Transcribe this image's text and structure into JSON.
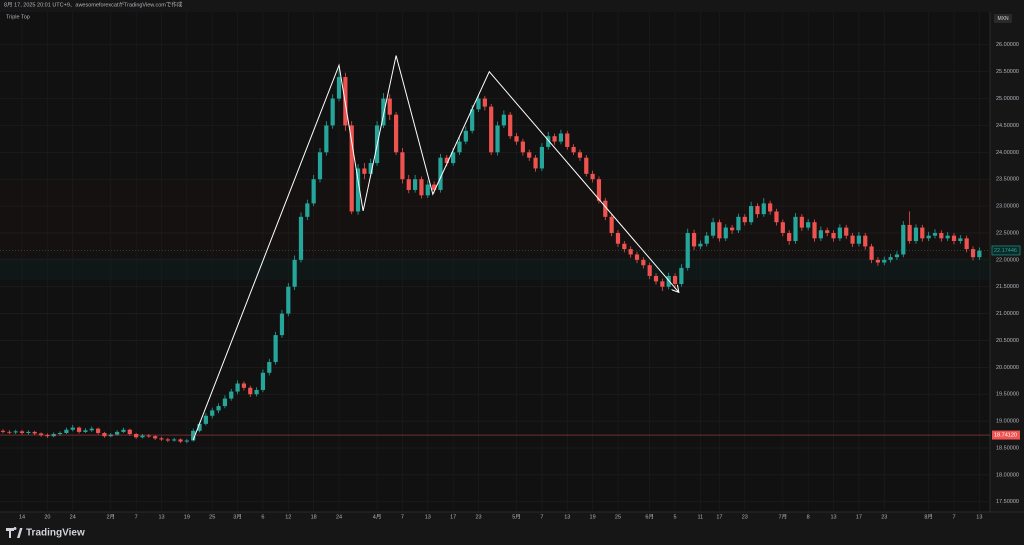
{
  "header": {
    "caption": "8月 17, 2025 20:01 UTC+9、awesomeforexcatがTradingView.comで作成"
  },
  "chart_data": {
    "type": "candlestick",
    "title": "Triple Top",
    "currency": "MXN",
    "up_color": "#26a69a",
    "down_color": "#ef5350",
    "grid": true,
    "categories": [
      null,
      null,
      null,
      "14",
      null,
      null,
      null,
      "20",
      null,
      null,
      null,
      "24",
      null,
      null,
      null,
      null,
      null,
      "2月",
      null,
      null,
      null,
      "7",
      null,
      null,
      null,
      "13",
      null,
      null,
      null,
      "19",
      null,
      null,
      null,
      "25",
      null,
      null,
      null,
      "3月",
      null,
      null,
      null,
      "6",
      null,
      null,
      null,
      "12",
      null,
      null,
      null,
      "18",
      null,
      null,
      null,
      "24",
      null,
      null,
      null,
      null,
      null,
      "4月",
      null,
      null,
      null,
      "7",
      null,
      null,
      null,
      "13",
      null,
      null,
      null,
      "17",
      null,
      null,
      null,
      "23",
      null,
      null,
      null,
      null,
      null,
      "5月",
      null,
      null,
      null,
      "7",
      null,
      null,
      null,
      "13",
      null,
      null,
      null,
      "19",
      null,
      null,
      null,
      "25",
      null,
      null,
      null,
      null,
      "6月",
      null,
      null,
      null,
      "5",
      null,
      null,
      null,
      "11",
      null,
      null,
      "17",
      null,
      null,
      null,
      "23",
      null,
      null,
      null,
      null,
      null,
      "7月",
      null,
      null,
      null,
      "8",
      null,
      null,
      null,
      "13",
      null,
      null,
      null,
      "17",
      null,
      null,
      null,
      "23",
      null,
      null,
      null,
      null,
      null,
      null,
      "8月",
      null,
      null,
      null,
      "7",
      null,
      null,
      null,
      "13"
    ],
    "ohlc": [
      [
        18.82,
        18.85,
        18.77,
        18.8
      ],
      [
        18.8,
        18.83,
        18.76,
        18.79
      ],
      [
        18.79,
        18.84,
        18.76,
        18.81
      ],
      [
        18.81,
        18.84,
        18.75,
        18.78
      ],
      [
        18.78,
        18.83,
        18.75,
        18.8
      ],
      [
        18.8,
        18.82,
        18.74,
        18.77
      ],
      [
        18.77,
        18.79,
        18.71,
        18.74
      ],
      [
        18.74,
        18.77,
        18.69,
        18.72
      ],
      [
        18.72,
        18.79,
        18.7,
        18.76
      ],
      [
        18.76,
        18.81,
        18.73,
        18.78
      ],
      [
        18.78,
        18.88,
        18.76,
        18.84
      ],
      [
        18.84,
        18.93,
        18.81,
        18.88
      ],
      [
        18.88,
        18.9,
        18.77,
        18.8
      ],
      [
        18.8,
        18.87,
        18.78,
        18.83
      ],
      [
        18.83,
        18.9,
        18.8,
        18.86
      ],
      [
        18.86,
        18.88,
        18.75,
        18.78
      ],
      [
        18.78,
        18.8,
        18.69,
        18.72
      ],
      [
        18.72,
        18.78,
        18.7,
        18.75
      ],
      [
        18.75,
        18.83,
        18.73,
        18.8
      ],
      [
        18.8,
        18.88,
        18.78,
        18.84
      ],
      [
        18.84,
        18.86,
        18.73,
        18.76
      ],
      [
        18.76,
        18.78,
        18.67,
        18.7
      ],
      [
        18.7,
        18.76,
        18.68,
        18.73
      ],
      [
        18.73,
        18.76,
        18.69,
        18.72
      ],
      [
        18.72,
        18.74,
        18.65,
        18.68
      ],
      [
        18.68,
        18.71,
        18.63,
        18.66
      ],
      [
        18.66,
        18.69,
        18.61,
        18.64
      ],
      [
        18.64,
        18.69,
        18.62,
        18.66
      ],
      [
        18.66,
        18.68,
        18.59,
        18.62
      ],
      [
        18.62,
        18.67,
        18.59,
        18.64
      ],
      [
        18.64,
        18.86,
        18.62,
        18.82
      ],
      [
        18.82,
        18.99,
        18.79,
        18.95
      ],
      [
        18.95,
        19.15,
        18.92,
        19.1
      ],
      [
        19.1,
        19.25,
        19.05,
        19.2
      ],
      [
        19.2,
        19.33,
        19.15,
        19.28
      ],
      [
        19.28,
        19.48,
        19.24,
        19.42
      ],
      [
        19.42,
        19.6,
        19.38,
        19.55
      ],
      [
        19.55,
        19.76,
        19.5,
        19.7
      ],
      [
        19.7,
        19.74,
        19.57,
        19.62
      ],
      [
        19.62,
        19.66,
        19.45,
        19.5
      ],
      [
        19.5,
        19.63,
        19.46,
        19.58
      ],
      [
        19.58,
        19.96,
        19.54,
        19.9
      ],
      [
        19.9,
        20.16,
        19.85,
        20.1
      ],
      [
        20.1,
        20.66,
        20.05,
        20.6
      ],
      [
        20.6,
        21.07,
        20.55,
        21.0
      ],
      [
        21.0,
        21.57,
        20.95,
        21.5
      ],
      [
        21.5,
        22.08,
        21.44,
        22.0
      ],
      [
        22.0,
        22.88,
        21.95,
        22.8
      ],
      [
        22.8,
        23.12,
        22.74,
        23.05
      ],
      [
        23.05,
        23.58,
        23.0,
        23.5
      ],
      [
        23.5,
        24.08,
        23.44,
        24.0
      ],
      [
        24.0,
        24.58,
        23.94,
        24.5
      ],
      [
        24.5,
        25.08,
        24.44,
        25.0
      ],
      [
        25.0,
        25.55,
        24.95,
        25.4
      ],
      [
        25.4,
        25.48,
        24.4,
        24.5
      ],
      [
        24.5,
        24.58,
        22.85,
        22.9
      ],
      [
        22.9,
        23.78,
        22.84,
        23.7
      ],
      [
        23.7,
        23.8,
        23.5,
        23.6
      ],
      [
        23.6,
        23.88,
        23.55,
        23.8
      ],
      [
        23.8,
        24.58,
        23.75,
        24.5
      ],
      [
        24.5,
        25.1,
        24.45,
        25.0
      ],
      [
        25.0,
        25.08,
        24.6,
        24.7
      ],
      [
        24.7,
        24.75,
        23.95,
        24.0
      ],
      [
        24.0,
        24.08,
        23.42,
        23.5
      ],
      [
        23.5,
        23.58,
        23.24,
        23.3
      ],
      [
        23.3,
        23.58,
        23.25,
        23.5
      ],
      [
        23.5,
        23.55,
        23.14,
        23.2
      ],
      [
        23.2,
        23.48,
        23.15,
        23.4
      ],
      [
        23.4,
        23.46,
        23.24,
        23.3
      ],
      [
        23.3,
        23.97,
        23.25,
        23.9
      ],
      [
        23.9,
        23.95,
        23.74,
        23.8
      ],
      [
        23.8,
        24.08,
        23.75,
        24.0
      ],
      [
        24.0,
        24.28,
        23.95,
        24.2
      ],
      [
        24.2,
        24.48,
        24.15,
        24.4
      ],
      [
        24.4,
        24.88,
        24.35,
        24.8
      ],
      [
        24.8,
        25.08,
        24.75,
        25.0
      ],
      [
        25.0,
        25.05,
        24.78,
        24.85
      ],
      [
        24.85,
        24.9,
        23.95,
        24.0
      ],
      [
        24.0,
        24.57,
        23.94,
        24.5
      ],
      [
        24.5,
        24.78,
        24.45,
        24.7
      ],
      [
        24.7,
        24.75,
        24.25,
        24.3
      ],
      [
        24.3,
        24.36,
        24.14,
        24.2
      ],
      [
        24.2,
        24.25,
        23.94,
        24.0
      ],
      [
        24.0,
        24.05,
        23.84,
        23.9
      ],
      [
        23.9,
        23.95,
        23.64,
        23.7
      ],
      [
        23.7,
        24.17,
        23.65,
        24.1
      ],
      [
        24.1,
        24.38,
        24.05,
        24.3
      ],
      [
        24.3,
        24.35,
        24.14,
        24.2
      ],
      [
        24.2,
        24.42,
        24.15,
        24.35
      ],
      [
        24.35,
        24.4,
        24.05,
        24.1
      ],
      [
        24.1,
        24.15,
        23.95,
        24.0
      ],
      [
        24.0,
        24.05,
        23.84,
        23.9
      ],
      [
        23.9,
        23.95,
        23.55,
        23.6
      ],
      [
        23.6,
        23.66,
        23.44,
        23.5
      ],
      [
        23.5,
        23.55,
        23.05,
        23.1
      ],
      [
        23.1,
        23.15,
        22.74,
        22.8
      ],
      [
        22.8,
        22.85,
        22.44,
        22.5
      ],
      [
        22.5,
        22.55,
        22.24,
        22.3
      ],
      [
        22.3,
        22.35,
        22.14,
        22.2
      ],
      [
        22.2,
        22.25,
        22.04,
        22.1
      ],
      [
        22.1,
        22.15,
        21.94,
        22.0
      ],
      [
        22.0,
        22.05,
        21.84,
        21.9
      ],
      [
        21.9,
        21.95,
        21.64,
        21.7
      ],
      [
        21.7,
        21.75,
        21.54,
        21.6
      ],
      [
        21.6,
        21.65,
        21.42,
        21.5
      ],
      [
        21.5,
        21.76,
        21.45,
        21.7
      ],
      [
        21.7,
        21.75,
        21.48,
        21.55
      ],
      [
        21.55,
        21.92,
        21.5,
        21.85
      ],
      [
        21.85,
        22.58,
        21.8,
        22.5
      ],
      [
        22.5,
        22.56,
        22.18,
        22.25
      ],
      [
        22.25,
        22.36,
        22.2,
        22.3
      ],
      [
        22.3,
        22.52,
        22.25,
        22.45
      ],
      [
        22.45,
        22.78,
        22.4,
        22.7
      ],
      [
        22.7,
        22.75,
        22.34,
        22.4
      ],
      [
        22.4,
        22.66,
        22.35,
        22.6
      ],
      [
        22.6,
        22.65,
        22.48,
        22.55
      ],
      [
        22.55,
        22.86,
        22.5,
        22.8
      ],
      [
        22.8,
        22.85,
        22.64,
        22.7
      ],
      [
        22.7,
        23.08,
        22.65,
        23.0
      ],
      [
        23.0,
        23.05,
        22.78,
        22.85
      ],
      [
        22.85,
        23.15,
        22.8,
        23.05
      ],
      [
        23.05,
        23.1,
        22.84,
        22.9
      ],
      [
        22.9,
        22.95,
        22.64,
        22.7
      ],
      [
        22.7,
        22.75,
        22.44,
        22.5
      ],
      [
        22.5,
        22.55,
        22.28,
        22.35
      ],
      [
        22.35,
        22.87,
        22.3,
        22.8
      ],
      [
        22.8,
        22.85,
        22.54,
        22.6
      ],
      [
        22.6,
        22.76,
        22.55,
        22.7
      ],
      [
        22.7,
        22.75,
        22.34,
        22.4
      ],
      [
        22.4,
        22.62,
        22.35,
        22.55
      ],
      [
        22.55,
        22.6,
        22.44,
        22.5
      ],
      [
        22.5,
        22.55,
        22.34,
        22.4
      ],
      [
        22.4,
        22.66,
        22.35,
        22.6
      ],
      [
        22.6,
        22.65,
        22.39,
        22.45
      ],
      [
        22.45,
        22.5,
        22.24,
        22.3
      ],
      [
        22.3,
        22.52,
        22.25,
        22.45
      ],
      [
        22.45,
        22.5,
        22.19,
        22.25
      ],
      [
        22.25,
        22.3,
        21.94,
        22.0
      ],
      [
        22.0,
        22.05,
        21.89,
        21.95
      ],
      [
        21.95,
        22.06,
        21.9,
        22.0
      ],
      [
        22.0,
        22.11,
        21.95,
        22.05
      ],
      [
        22.05,
        22.16,
        22.0,
        22.1
      ],
      [
        22.1,
        22.72,
        22.05,
        22.65
      ],
      [
        22.65,
        22.9,
        22.3,
        22.35
      ],
      [
        22.35,
        22.66,
        22.3,
        22.6
      ],
      [
        22.6,
        22.65,
        22.34,
        22.4
      ],
      [
        22.4,
        22.52,
        22.35,
        22.45
      ],
      [
        22.45,
        22.57,
        22.4,
        22.5
      ],
      [
        22.5,
        22.55,
        22.34,
        22.4
      ],
      [
        22.4,
        22.52,
        22.35,
        22.45
      ],
      [
        22.45,
        22.5,
        22.29,
        22.35
      ],
      [
        22.35,
        22.46,
        22.3,
        22.4
      ],
      [
        22.4,
        22.45,
        22.14,
        22.2
      ],
      [
        22.2,
        22.25,
        21.99,
        22.05
      ],
      [
        22.05,
        22.23,
        22.0,
        22.17
      ]
    ],
    "ylim": [
      17.31,
      26.61
    ],
    "yticks": [
      {
        "value": 17.5,
        "label": "17.50000"
      },
      {
        "value": 18,
        "label": "18.00000"
      },
      {
        "value": 18.5,
        "label": "18.50000"
      },
      {
        "value": 19,
        "label": "19.00000"
      },
      {
        "value": 19.5,
        "label": "19.50000"
      },
      {
        "value": 20,
        "label": "20.00000"
      },
      {
        "value": 20.5,
        "label": "20.50000"
      },
      {
        "value": 21,
        "label": "21.00000"
      },
      {
        "value": 21.5,
        "label": "21.50000"
      },
      {
        "value": 22,
        "label": "22.00000"
      },
      {
        "value": 22.5,
        "label": "22.50000"
      },
      {
        "value": 23,
        "label": "23.00000"
      },
      {
        "value": 23.5,
        "label": "23.50000"
      },
      {
        "value": 24,
        "label": "24.00000"
      },
      {
        "value": 24.5,
        "label": "24.50000"
      },
      {
        "value": 25,
        "label": "25.00000"
      },
      {
        "value": 25.5,
        "label": "25.50000"
      },
      {
        "value": 26,
        "label": "26.00000"
      }
    ],
    "last_price": 22.17446,
    "reference_price": {
      "value": 18.7412,
      "label": "18.74120"
    },
    "pattern_line": {
      "color": "#ffffff",
      "x": [
        30,
        53,
        56.8,
        62,
        67.8,
        76.7,
        106.5
      ],
      "y": [
        18.65,
        25.62,
        22.91,
        25.8,
        23.22,
        25.5,
        21.41
      ]
    }
  },
  "footer": {
    "brand": "TradingView"
  }
}
